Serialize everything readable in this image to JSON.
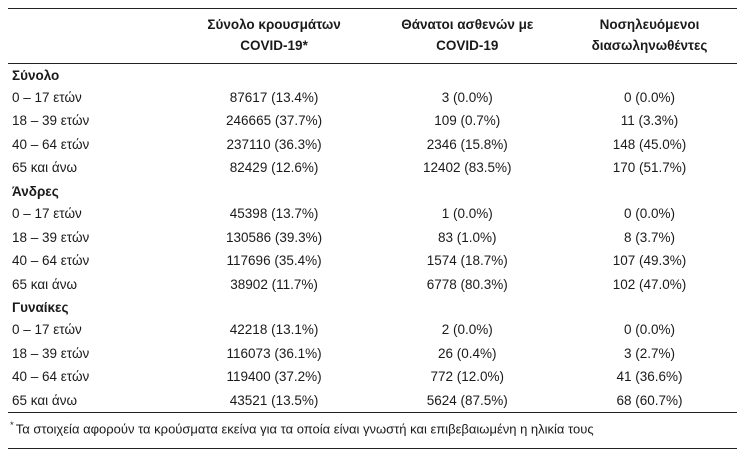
{
  "table": {
    "header": {
      "cases_line1": "Σύνολο κρουσμάτων",
      "cases_line2": "COVID-19*",
      "deaths_line1": "Θάνατοι ασθενών με",
      "deaths_line2": "COVID-19",
      "intubated_line1": "Νοσηλευόμενοι",
      "intubated_line2": "διασωληνωθέντες"
    },
    "sections": [
      {
        "title": "Σύνολο",
        "rows": [
          {
            "label": "0 – 17 ετών",
            "cases": "87617 (13.4%)",
            "deaths": "3 (0.0%)",
            "intubated": "0 (0.0%)"
          },
          {
            "label": "18 – 39 ετών",
            "cases": "246665 (37.7%)",
            "deaths": "109 (0.7%)",
            "intubated": "11 (3.3%)"
          },
          {
            "label": "40 – 64 ετών",
            "cases": "237110 (36.3%)",
            "deaths": "2346 (15.8%)",
            "intubated": "148 (45.0%)"
          },
          {
            "label": "65 και άνω",
            "cases": "82429 (12.6%)",
            "deaths": "12402 (83.5%)",
            "intubated": "170 (51.7%)"
          }
        ]
      },
      {
        "title": "Άνδρες",
        "rows": [
          {
            "label": "0 – 17 ετών",
            "cases": "45398 (13.7%)",
            "deaths": "1 (0.0%)",
            "intubated": "0 (0.0%)"
          },
          {
            "label": "18 – 39 ετών",
            "cases": "130586 (39.3%)",
            "deaths": "83 (1.0%)",
            "intubated": "8 (3.7%)"
          },
          {
            "label": "40 – 64 ετών",
            "cases": "117696 (35.4%)",
            "deaths": "1574 (18.7%)",
            "intubated": "107 (49.3%)"
          },
          {
            "label": "65 και άνω",
            "cases": "38902 (11.7%)",
            "deaths": "6778 (80.3%)",
            "intubated": "102 (47.0%)"
          }
        ]
      },
      {
        "title": "Γυναίκες",
        "rows": [
          {
            "label": "0 – 17 ετών",
            "cases": "42218 (13.1%)",
            "deaths": "2 (0.0%)",
            "intubated": "0 (0.0%)"
          },
          {
            "label": "18 – 39 ετών",
            "cases": "116073 (36.1%)",
            "deaths": "26 (0.4%)",
            "intubated": "3 (2.7%)"
          },
          {
            "label": "40 – 64 ετών",
            "cases": "119400 (37.2%)",
            "deaths": "772 (12.0%)",
            "intubated": "41 (36.6%)"
          },
          {
            "label": "65 και άνω",
            "cases": "43521 (13.5%)",
            "deaths": "5624 (87.5%)",
            "intubated": "68 (60.7%)"
          }
        ]
      }
    ],
    "footnote_marker": "*",
    "footnote_text": "Τα στοιχεία αφορούν τα κρούσματα εκείνα για τα οποία είναι γνωστή και επιβεβαιωμένη η ηλικία τους"
  },
  "colors": {
    "text": "#1a1a1a",
    "rule": "#222222",
    "background": "#ffffff"
  }
}
